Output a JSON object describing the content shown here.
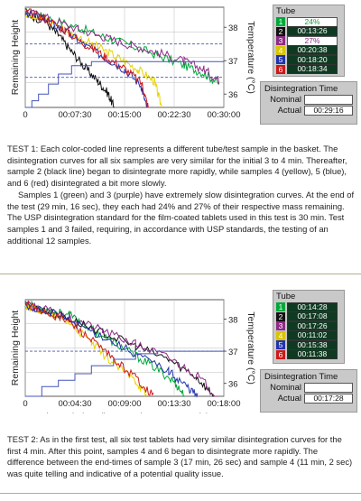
{
  "chart_data": [
    {
      "type": "line",
      "xlabel": "Elapsed Time (hours: minutes: seconds)",
      "ylabel": "Remaining Height",
      "y2label": "Temperature (°C)",
      "x_ticks": [
        "0",
        "00:07:30",
        "00:15:00",
        "00:22:30",
        "00:30:00"
      ],
      "x_tick_minutes": [
        0,
        7.5,
        15,
        22.5,
        30
      ],
      "xlim_minutes": [
        0,
        30
      ],
      "temp_ticks": [
        36,
        37,
        38
      ],
      "temp_lim": [
        35.6,
        38.6
      ],
      "series": [
        {
          "name": "1",
          "color": "#00a83a",
          "points": [
            [
              0,
              0.95
            ],
            [
              3,
              0.9
            ],
            [
              8,
              0.8
            ],
            [
              12,
              0.7
            ],
            [
              16,
              0.62
            ],
            [
              20,
              0.52
            ],
            [
              24,
              0.42
            ],
            [
              27,
              0.34
            ],
            [
              29.27,
              0.24
            ]
          ]
        },
        {
          "name": "2",
          "color": "#111111",
          "points": [
            [
              0,
              0.94
            ],
            [
              3,
              0.86
            ],
            [
              5,
              0.72
            ],
            [
              7,
              0.56
            ],
            [
              9,
              0.4
            ],
            [
              11,
              0.26
            ],
            [
              12.5,
              0.14
            ],
            [
              13.43,
              0.0
            ]
          ]
        },
        {
          "name": "3",
          "color": "#8e2b86",
          "points": [
            [
              0,
              0.96
            ],
            [
              3,
              0.9
            ],
            [
              8,
              0.78
            ],
            [
              12,
              0.7
            ],
            [
              16,
              0.62
            ],
            [
              20,
              0.55
            ],
            [
              24,
              0.46
            ],
            [
              27,
              0.38
            ],
            [
              29.27,
              0.27
            ]
          ]
        },
        {
          "name": "4",
          "color": "#e8d400",
          "points": [
            [
              0,
              0.95
            ],
            [
              3,
              0.88
            ],
            [
              7,
              0.74
            ],
            [
              11,
              0.6
            ],
            [
              14,
              0.5
            ],
            [
              17,
              0.38
            ],
            [
              19.5,
              0.26
            ],
            [
              20.63,
              0.0
            ]
          ]
        },
        {
          "name": "5",
          "color": "#2233aa",
          "points": [
            [
              0,
              0.95
            ],
            [
              3,
              0.88
            ],
            [
              6,
              0.76
            ],
            [
              9,
              0.62
            ],
            [
              12,
              0.5
            ],
            [
              15,
              0.38
            ],
            [
              17.5,
              0.22
            ],
            [
              18.33,
              0.0
            ]
          ]
        },
        {
          "name": "6",
          "color": "#cc1a1a",
          "points": [
            [
              0,
              0.96
            ],
            [
              3,
              0.89
            ],
            [
              6,
              0.77
            ],
            [
              9,
              0.63
            ],
            [
              12,
              0.51
            ],
            [
              15,
              0.39
            ],
            [
              17.6,
              0.24
            ],
            [
              18.57,
              0.0
            ]
          ]
        }
      ],
      "temperature_series": {
        "color": "#4455bb",
        "limit_lines": [
          37.5,
          36.5
        ],
        "points": [
          [
            0,
            35.6
          ],
          [
            1,
            35.8
          ],
          [
            2,
            36.0
          ],
          [
            3.5,
            36.3
          ],
          [
            5,
            36.6
          ],
          [
            7,
            36.85
          ],
          [
            10,
            36.97
          ],
          [
            30,
            37.0
          ]
        ]
      }
    },
    {
      "type": "line",
      "xlabel": "Elapsed Time (hours: minutes: seconds)",
      "ylabel": "Remaining Height",
      "y2label": "Temperature (°C)",
      "x_ticks": [
        "0",
        "00:04:30",
        "00:09:00",
        "00:13:30",
        "00:18:00"
      ],
      "x_tick_minutes": [
        0,
        4.5,
        9,
        13.5,
        18
      ],
      "xlim_minutes": [
        0,
        18
      ],
      "temp_ticks": [
        36,
        37,
        38
      ],
      "temp_lim": [
        35.6,
        38.6
      ],
      "series": [
        {
          "name": "1",
          "color": "#00a83a",
          "points": [
            [
              0,
              0.95
            ],
            [
              2,
              0.9
            ],
            [
              4,
              0.84
            ],
            [
              6,
              0.7
            ],
            [
              8,
              0.56
            ],
            [
              10,
              0.42
            ],
            [
              12,
              0.28
            ],
            [
              13.5,
              0.15
            ],
            [
              14.47,
              0.0
            ]
          ]
        },
        {
          "name": "2",
          "color": "#111111",
          "points": [
            [
              0,
              0.94
            ],
            [
              2,
              0.88
            ],
            [
              4,
              0.8
            ],
            [
              7,
              0.66
            ],
            [
              10,
              0.52
            ],
            [
              13,
              0.38
            ],
            [
              15.5,
              0.2
            ],
            [
              17.13,
              0.0
            ]
          ]
        },
        {
          "name": "3",
          "color": "#8e2b86",
          "points": [
            [
              0,
              0.95
            ],
            [
              2,
              0.89
            ],
            [
              4,
              0.82
            ],
            [
              7,
              0.68
            ],
            [
              10,
              0.54
            ],
            [
              13,
              0.4
            ],
            [
              15.5,
              0.22
            ],
            [
              17.43,
              0.0
            ]
          ]
        },
        {
          "name": "4",
          "color": "#e8d400",
          "points": [
            [
              0,
              0.94
            ],
            [
              2,
              0.86
            ],
            [
              4,
              0.76
            ],
            [
              6,
              0.55
            ],
            [
              8,
              0.34
            ],
            [
              10,
              0.16
            ],
            [
              11.03,
              0.0
            ]
          ]
        },
        {
          "name": "5",
          "color": "#2233aa",
          "points": [
            [
              0,
              0.95
            ],
            [
              2,
              0.88
            ],
            [
              4,
              0.79
            ],
            [
              7,
              0.62
            ],
            [
              10,
              0.44
            ],
            [
              13,
              0.26
            ],
            [
              14.5,
              0.12
            ],
            [
              15.63,
              0.0
            ]
          ]
        },
        {
          "name": "6",
          "color": "#cc1a1a",
          "points": [
            [
              0,
              0.95
            ],
            [
              2,
              0.87
            ],
            [
              4,
              0.77
            ],
            [
              6,
              0.58
            ],
            [
              8,
              0.38
            ],
            [
              10,
              0.2
            ],
            [
              11.63,
              0.0
            ]
          ]
        }
      ],
      "temperature_series": {
        "color": "#4455bb",
        "limit_lines": [
          37.0
        ],
        "points": [
          [
            0,
            35.6
          ],
          [
            1.5,
            35.9
          ],
          [
            3,
            36.1
          ],
          [
            4.5,
            36.3
          ],
          [
            6,
            36.55
          ],
          [
            8,
            36.75
          ],
          [
            10,
            36.92
          ],
          [
            12,
            37.0
          ],
          [
            18,
            37.05
          ]
        ]
      }
    }
  ],
  "legend1": {
    "title": "Tube",
    "rows": [
      {
        "n": "1",
        "color": "#00a83a",
        "value": "24%",
        "dark": false,
        "value_color": "#1a9a3a"
      },
      {
        "n": "2",
        "color": "#111111",
        "value": "00:13:26",
        "dark": true,
        "value_color": "#ffffff"
      },
      {
        "n": "3",
        "color": "#8e2b86",
        "value": "27%",
        "dark": false,
        "value_color": "#8e2b86"
      },
      {
        "n": "4",
        "color": "#d9c400",
        "value": "00:20:38",
        "dark": true,
        "value_color": "#ffffff"
      },
      {
        "n": "5",
        "color": "#2233aa",
        "value": "00:18:20",
        "dark": true,
        "value_color": "#ffffff"
      },
      {
        "n": "6",
        "color": "#cc1a1a",
        "value": "00:18:34",
        "dark": true,
        "value_color": "#ffffff"
      }
    ]
  },
  "legend2": {
    "title": "Tube",
    "rows": [
      {
        "n": "1",
        "color": "#00a83a",
        "value": "00:14:28",
        "dark": true,
        "value_color": "#ffffff"
      },
      {
        "n": "2",
        "color": "#111111",
        "value": "00:17:08",
        "dark": true,
        "value_color": "#ffffff"
      },
      {
        "n": "3",
        "color": "#8e2b86",
        "value": "00:17:26",
        "dark": true,
        "value_color": "#ffffff"
      },
      {
        "n": "4",
        "color": "#d9c400",
        "value": "00:11:02",
        "dark": true,
        "value_color": "#ffffff"
      },
      {
        "n": "5",
        "color": "#2233aa",
        "value": "00:15:38",
        "dark": true,
        "value_color": "#ffffff"
      },
      {
        "n": "6",
        "color": "#cc1a1a",
        "value": "00:11:38",
        "dark": true,
        "value_color": "#ffffff"
      }
    ]
  },
  "dis1": {
    "title": "Disintegration Time",
    "nominal_label": "Nominal",
    "nominal_value": "",
    "actual_label": "Actual",
    "actual_value": "00:29:16"
  },
  "dis2": {
    "title": "Disintegration Time",
    "nominal_label": "Nominal",
    "nominal_value": "",
    "actual_label": "Actual",
    "actual_value": "00:17:28"
  },
  "text1": {
    "p1": "TEST 1: Each color-coded line represents a different tube/test sample in the basket. The disintegration curves for all six samples are very similar for the initial 3 to 4 min. Thereafter, sample 2 (black line) began to disintegrate more rapidly, while samples 4 (yellow), 5 (blue), and 6 (red) disintegrated a bit more slowly.",
    "p2": "Samples 1 (green) and 3 (purple) have extremely slow disintegration curves. At the end of the test (29 min, 16 sec), they each had 24% and 27% of their respective mass remaining. The USP disintegration standard for the film-coated tablets used in this test is 30 min. Test samples 1 and 3 failed, requiring, in accordance with USP standards, the testing of an additional 12 samples."
  },
  "text2": {
    "p1": "TEST 2: As in the first test, all six test tablets had very similar disintegration curves for the first 4 min. After this point, samples 4 and 6 began to disintegrate more rapidly. The difference between the end-times of sample 3 (17 min, 26 sec) and sample 4 (11 min, 2 sec) was quite telling and indicative of a potential quality issue."
  }
}
